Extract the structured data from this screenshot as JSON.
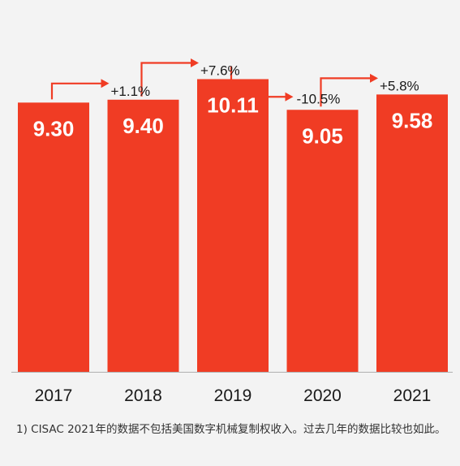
{
  "chart_data": {
    "type": "bar",
    "categories": [
      "2017",
      "2018",
      "2019",
      "2020",
      "2021"
    ],
    "values": [
      9.3,
      9.4,
      10.11,
      9.05,
      9.58
    ],
    "value_labels": [
      "9.30",
      "9.40",
      "10.11",
      "9.05",
      "9.58"
    ],
    "changes": [
      "+1.1%",
      "+7.6%",
      "-10.5%",
      "+5.8%"
    ],
    "title": "",
    "xlabel": "",
    "ylabel": "",
    "ylim": [
      0,
      10.6
    ],
    "grid": false,
    "colors": {
      "bar": "#f03c24",
      "arrow": "#f03c24",
      "baseline": "#b0b0b0",
      "background": "#f3f3f3"
    }
  },
  "footnote": "1) CISAC 2021年的数据不包括美国数字机械复制权收入。过去几年的数据比较也如此。"
}
